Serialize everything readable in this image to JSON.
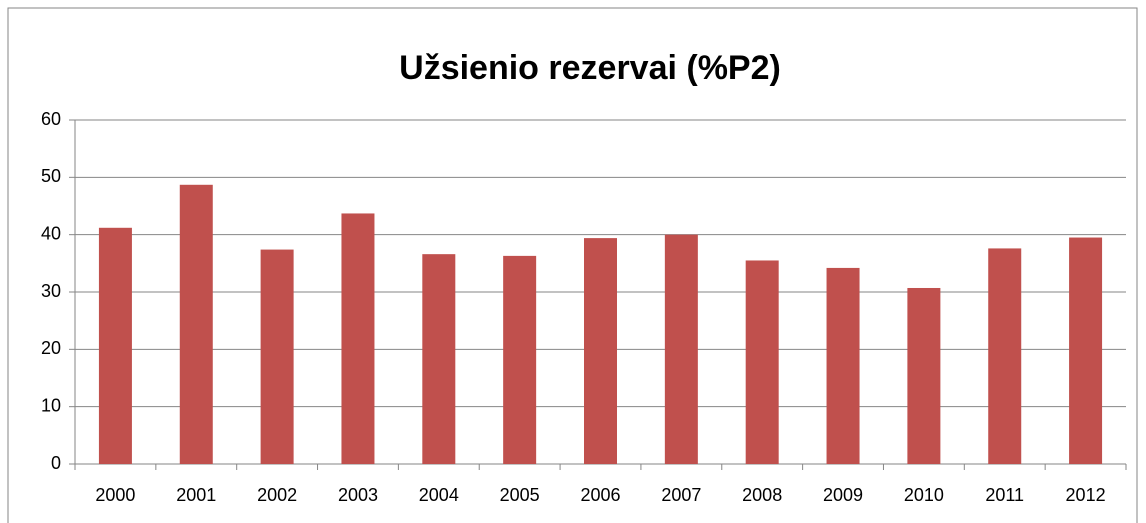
{
  "chart_data": {
    "type": "bar",
    "title": "Užsienio rezervai (%P2)",
    "categories": [
      "2000",
      "2001",
      "2002",
      "2003",
      "2004",
      "2005",
      "2006",
      "2007",
      "2008",
      "2009",
      "2010",
      "2011",
      "2012"
    ],
    "values": [
      41.2,
      48.7,
      37.4,
      43.7,
      36.6,
      36.3,
      39.4,
      40.0,
      35.5,
      34.2,
      30.7,
      37.6,
      39.5
    ],
    "color": "#c0504d",
    "ylim": [
      0,
      60
    ],
    "yticks": [
      0,
      10,
      20,
      30,
      40,
      50,
      60
    ],
    "grid": true
  }
}
